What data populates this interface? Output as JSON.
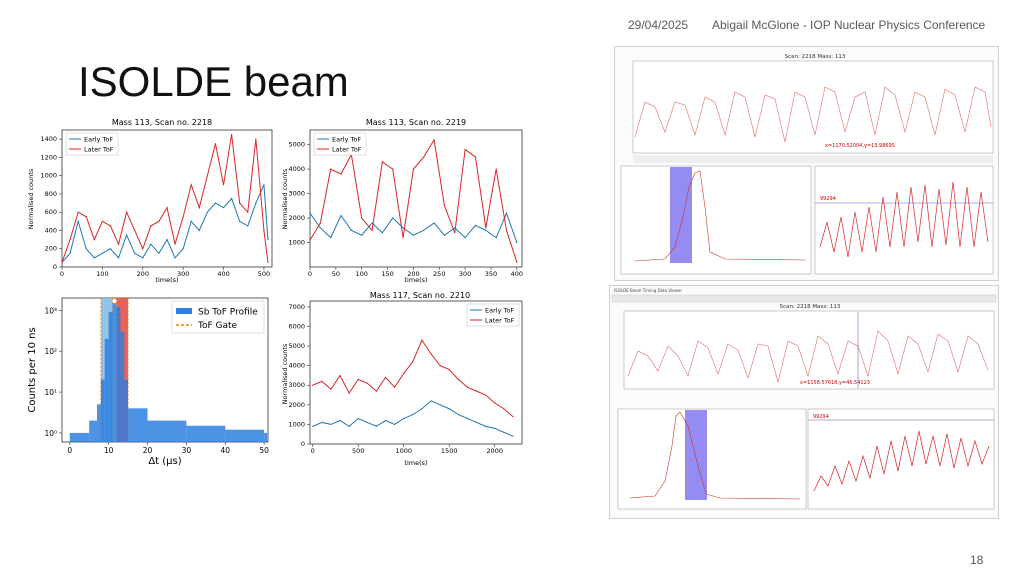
{
  "slide": {
    "date": "29/04/2025",
    "footer": "Abigail McGlone - IOP Nuclear Physics Conference",
    "title": "ISOLDE beam",
    "page_number": "18"
  },
  "chart_data": [
    {
      "type": "line",
      "title": "Mass 113, Scan no. 2218",
      "xlabel": "time(s)",
      "ylabel": "Normalised counts",
      "xlim": [
        0,
        520
      ],
      "ylim": [
        0,
        1500
      ],
      "xticks": [
        0,
        100,
        200,
        300,
        400,
        500
      ],
      "yticks": [
        0,
        200,
        400,
        600,
        800,
        1000,
        1200,
        1400
      ],
      "legend": "top-left",
      "x": [
        0,
        20,
        40,
        60,
        80,
        100,
        120,
        140,
        160,
        180,
        200,
        220,
        240,
        260,
        280,
        300,
        320,
        340,
        360,
        380,
        400,
        420,
        440,
        460,
        480,
        500,
        510
      ],
      "series": [
        {
          "name": "Early ToF",
          "color": "#1f77b4",
          "values": [
            50,
            150,
            500,
            200,
            100,
            150,
            200,
            100,
            350,
            150,
            100,
            250,
            150,
            300,
            100,
            200,
            500,
            400,
            600,
            700,
            650,
            750,
            500,
            450,
            700,
            900,
            300
          ]
        },
        {
          "name": "Later ToF",
          "color": "#d62728",
          "values": [
            50,
            300,
            600,
            550,
            300,
            500,
            450,
            250,
            600,
            400,
            200,
            450,
            500,
            650,
            250,
            550,
            900,
            650,
            1000,
            1350,
            900,
            1450,
            700,
            600,
            1400,
            400,
            50
          ]
        }
      ]
    },
    {
      "type": "line",
      "title": "Mass 113, Scan no. 2219",
      "xlabel": "time(s)",
      "ylabel": "Normalised counts",
      "xlim": [
        0,
        410
      ],
      "ylim": [
        0,
        5600
      ],
      "xticks": [
        0,
        50,
        100,
        150,
        200,
        250,
        300,
        350,
        400
      ],
      "yticks": [
        1000,
        2000,
        3000,
        4000,
        5000
      ],
      "legend": "top-left",
      "x": [
        0,
        20,
        40,
        60,
        80,
        100,
        120,
        140,
        160,
        180,
        200,
        220,
        240,
        260,
        280,
        300,
        320,
        340,
        360,
        380,
        400
      ],
      "series": [
        {
          "name": "Early ToF",
          "color": "#1f77b4",
          "values": [
            2200,
            1600,
            1200,
            2100,
            1500,
            1300,
            1800,
            1400,
            2000,
            1600,
            1300,
            1500,
            1800,
            1300,
            1600,
            1200,
            1700,
            1500,
            1200,
            2200,
            1000
          ]
        },
        {
          "name": "Later ToF",
          "color": "#d62728",
          "values": [
            1100,
            1800,
            4000,
            3800,
            4600,
            2000,
            1500,
            4300,
            4000,
            1200,
            4000,
            4500,
            5200,
            2500,
            1400,
            4800,
            4500,
            1600,
            4000,
            1500,
            200
          ]
        }
      ]
    },
    {
      "type": "bar",
      "title": "",
      "xlabel": "Δt (μs)",
      "ylabel": "Counts per 10 ns",
      "xlim": [
        -2,
        51
      ],
      "yscale": "log",
      "ylim": [
        0.6,
        2000
      ],
      "xticks": [
        0,
        10,
        20,
        30,
        40,
        50
      ],
      "yticks": [
        "10⁰",
        "10¹",
        "10²",
        "10³"
      ],
      "legend": "top-right",
      "series": [
        {
          "name": "Sb ToF Profile",
          "color": "#2d7fe0"
        },
        {
          "name": "ToF Gate",
          "color": "#ff7f0e"
        }
      ],
      "profile": {
        "x": [
          0,
          5,
          7,
          8,
          9,
          10,
          11,
          12,
          13,
          14,
          15,
          20,
          30,
          40,
          50
        ],
        "values": [
          1,
          2,
          5,
          20,
          200,
          900,
          1500,
          1200,
          300,
          20,
          4,
          2,
          1.5,
          1.2,
          1
        ]
      },
      "gates": [
        {
          "from": 8,
          "to": 11,
          "color": "#7fb8e8"
        },
        {
          "from": 12,
          "to": 15,
          "color": "#e5483c"
        }
      ]
    },
    {
      "type": "line",
      "title": "Mass 117, Scan no. 2210",
      "xlabel": "time(s)",
      "ylabel": "Normalised counts",
      "xlim": [
        -30,
        2300
      ],
      "ylim": [
        0,
        7300
      ],
      "xticks": [
        0,
        500,
        1000,
        1500,
        2000
      ],
      "yticks": [
        0,
        1000,
        2000,
        3000,
        4000,
        5000,
        6000,
        7000
      ],
      "legend": "top-right",
      "x": [
        0,
        100,
        200,
        300,
        400,
        500,
        600,
        700,
        800,
        900,
        1000,
        1100,
        1200,
        1300,
        1400,
        1500,
        1600,
        1700,
        1800,
        1900,
        2000,
        2100,
        2200
      ],
      "series": [
        {
          "name": "Early ToF",
          "color": "#1f77b4",
          "values": [
            900,
            1100,
            1000,
            1200,
            900,
            1300,
            1100,
            900,
            1200,
            1000,
            1300,
            1500,
            1800,
            2200,
            2000,
            1800,
            1500,
            1300,
            1100,
            900,
            800,
            600,
            400
          ]
        },
        {
          "name": "Later ToF",
          "color": "#d62728",
          "values": [
            3000,
            3200,
            2800,
            3500,
            2600,
            3300,
            3100,
            2700,
            3400,
            2900,
            3600,
            4200,
            5300,
            4600,
            4000,
            3800,
            3300,
            2900,
            2700,
            2500,
            2100,
            1800,
            1400
          ]
        }
      ]
    }
  ],
  "screenshots": {
    "top": {
      "scan_title": "Scan: 2218 Mass: 113",
      "cursor_readout": "x=1170.52004,y=13.98695",
      "gate_value": "99294"
    },
    "bottom": {
      "window_title": "ISOLDE Beam Timing Data Viewer",
      "scan_title": "Scan: 2218 Mass: 113",
      "cursor_readout": "x=1158.57618,y=46.54123",
      "gate_value": "99294"
    }
  }
}
